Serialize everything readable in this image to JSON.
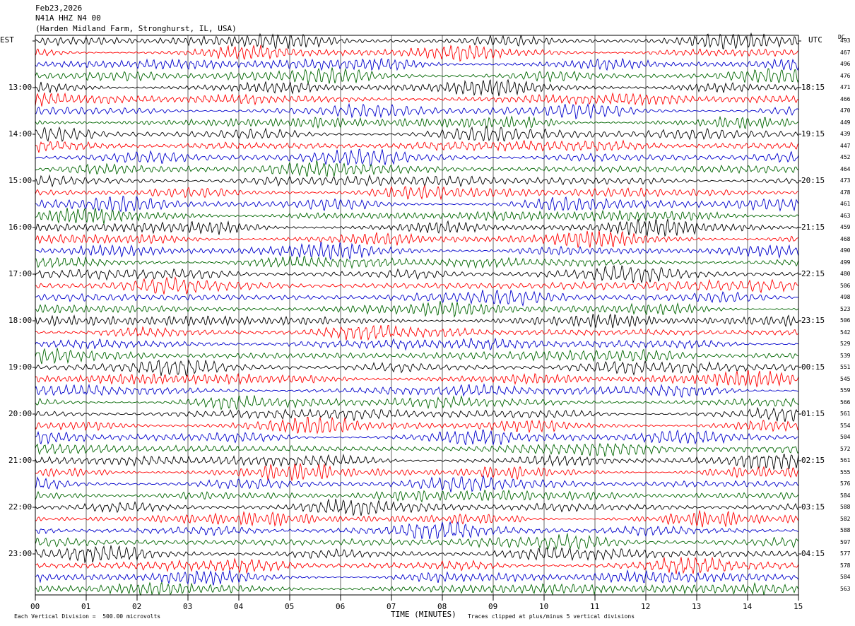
{
  "header": {
    "date": "Feb23,2026",
    "station": "N41A HHZ N4 00",
    "location": "(Harden Midland Farm, Stronghurst, IL, USA)"
  },
  "left_timezone": "EST",
  "right_timezone": "UTC",
  "dc_label": "DC",
  "colors": [
    "#000000",
    "#ff0000",
    "#0000cc",
    "#006600"
  ],
  "chart_data": {
    "type": "line",
    "title": "",
    "xlabel": "TIME (MINUTES)",
    "xlim": [
      0,
      15
    ],
    "x_ticks": [
      "00",
      "01",
      "02",
      "03",
      "04",
      "05",
      "06",
      "07",
      "08",
      "09",
      "10",
      "11",
      "12",
      "13",
      "14",
      "15"
    ],
    "rows": 48,
    "left_hour_labels": [
      "13:00",
      "14:00",
      "15:00",
      "16:00",
      "17:00",
      "18:00",
      "19:00",
      "20:00",
      "21:00",
      "22:00",
      "23:00"
    ],
    "right_hour_labels": [
      "18:15",
      "19:15",
      "20:15",
      "21:15",
      "22:15",
      "23:15",
      "00:15",
      "01:15",
      "02:15",
      "03:15",
      "04:15"
    ],
    "dc_values": [
      "493",
      "467",
      "496",
      "476",
      "471",
      "466",
      "470",
      "449",
      "439",
      "447",
      "452",
      "464",
      "473",
      "478",
      "461",
      "463",
      "459",
      "468",
      "490",
      "499",
      "480",
      "506",
      "498",
      "523",
      "506",
      "542",
      "529",
      "539",
      "551",
      "545",
      "559",
      "566",
      "561",
      "554",
      "504",
      "572",
      "561",
      "555",
      "576",
      "584",
      "588",
      "582",
      "588",
      "597",
      "577",
      "578",
      "584",
      "563"
    ]
  },
  "footer": {
    "vertical_division": "Each Vertical Division =  500.00 microvolts",
    "clipping": "Traces clipped at plus/minus 5 vertical divisions"
  }
}
